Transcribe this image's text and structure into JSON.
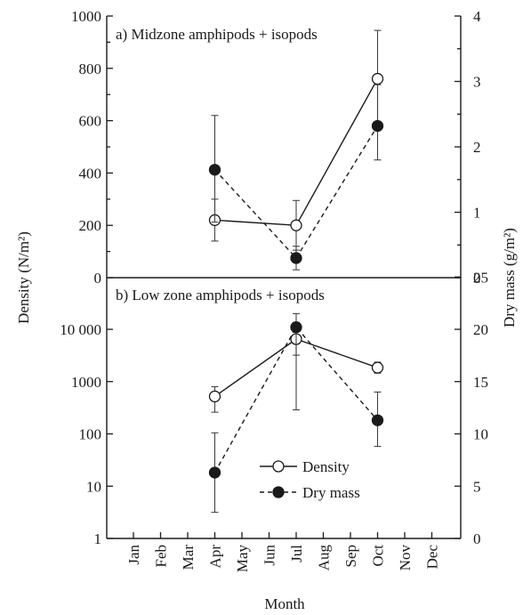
{
  "chart_data": [
    {
      "type": "line",
      "panel_title": "a) Midzone amphipods + isopods",
      "categories": [
        "Apr",
        "Jul",
        "Oct"
      ],
      "y_left_label": "Density (N/m²)",
      "y_right_label": "Dry mass (g/m²)",
      "ylim_left": [
        0,
        1000
      ],
      "ylim_right": [
        0,
        4
      ],
      "left_ticks": [
        "0",
        "200",
        "400",
        "600",
        "800",
        "1000"
      ],
      "right_ticks": [
        "0",
        "1",
        "2",
        "3",
        "4"
      ],
      "series": [
        {
          "name": "Density",
          "axis": "left",
          "marker": "open-circle",
          "line": "solid",
          "values": [
            220,
            200,
            760
          ],
          "err_low": [
            140,
            105,
            570
          ],
          "err_high": [
            300,
            295,
            945
          ]
        },
        {
          "name": "Dry mass",
          "axis": "right",
          "marker": "filled-circle",
          "line": "dashed",
          "values": [
            1.65,
            0.3,
            2.32
          ],
          "err_low": [
            0.85,
            0.12,
            1.8
          ],
          "err_high": [
            2.48,
            0.48,
            2.95
          ]
        }
      ]
    },
    {
      "type": "line",
      "panel_title": "b) Low zone amphipods + isopods",
      "categories": [
        "Apr",
        "Jul",
        "Oct"
      ],
      "y_left_label": "Density (N/m²)",
      "y_right_label": "Dry mass (g/m²)",
      "ylim_left": [
        1,
        10000
      ],
      "y_left_scale": "log",
      "ylim_right": [
        0,
        25
      ],
      "left_ticks": [
        "1",
        "10",
        "100",
        "1000",
        "10 000"
      ],
      "right_ticks": [
        "0",
        "5",
        "10",
        "15",
        "20",
        "25"
      ],
      "series": [
        {
          "name": "Density",
          "axis": "left",
          "marker": "open-circle",
          "line": "solid",
          "values": [
            520,
            6500,
            1850
          ],
          "err_low": [
            260,
            3200,
            1450
          ],
          "err_high": [
            800,
            13500,
            2350
          ]
        },
        {
          "name": "Dry mass",
          "axis": "right",
          "marker": "filled-circle",
          "line": "dashed",
          "values": [
            6.3,
            20.2,
            11.3
          ],
          "err_low": [
            2.5,
            12.3,
            8.8
          ],
          "err_high": [
            10.1,
            21.5,
            14.0
          ]
        }
      ]
    }
  ],
  "x_axis": {
    "label": "Month",
    "months": [
      "Jan",
      "Feb",
      "Mar",
      "Apr",
      "May",
      "Jun",
      "Jul",
      "Aug",
      "Sep",
      "Oct",
      "Nov",
      "Dec"
    ]
  },
  "legend": {
    "items": [
      {
        "label": "Density",
        "marker": "open-circle",
        "line": "solid"
      },
      {
        "label": "Dry mass",
        "marker": "filled-circle",
        "line": "dashed"
      }
    ]
  }
}
